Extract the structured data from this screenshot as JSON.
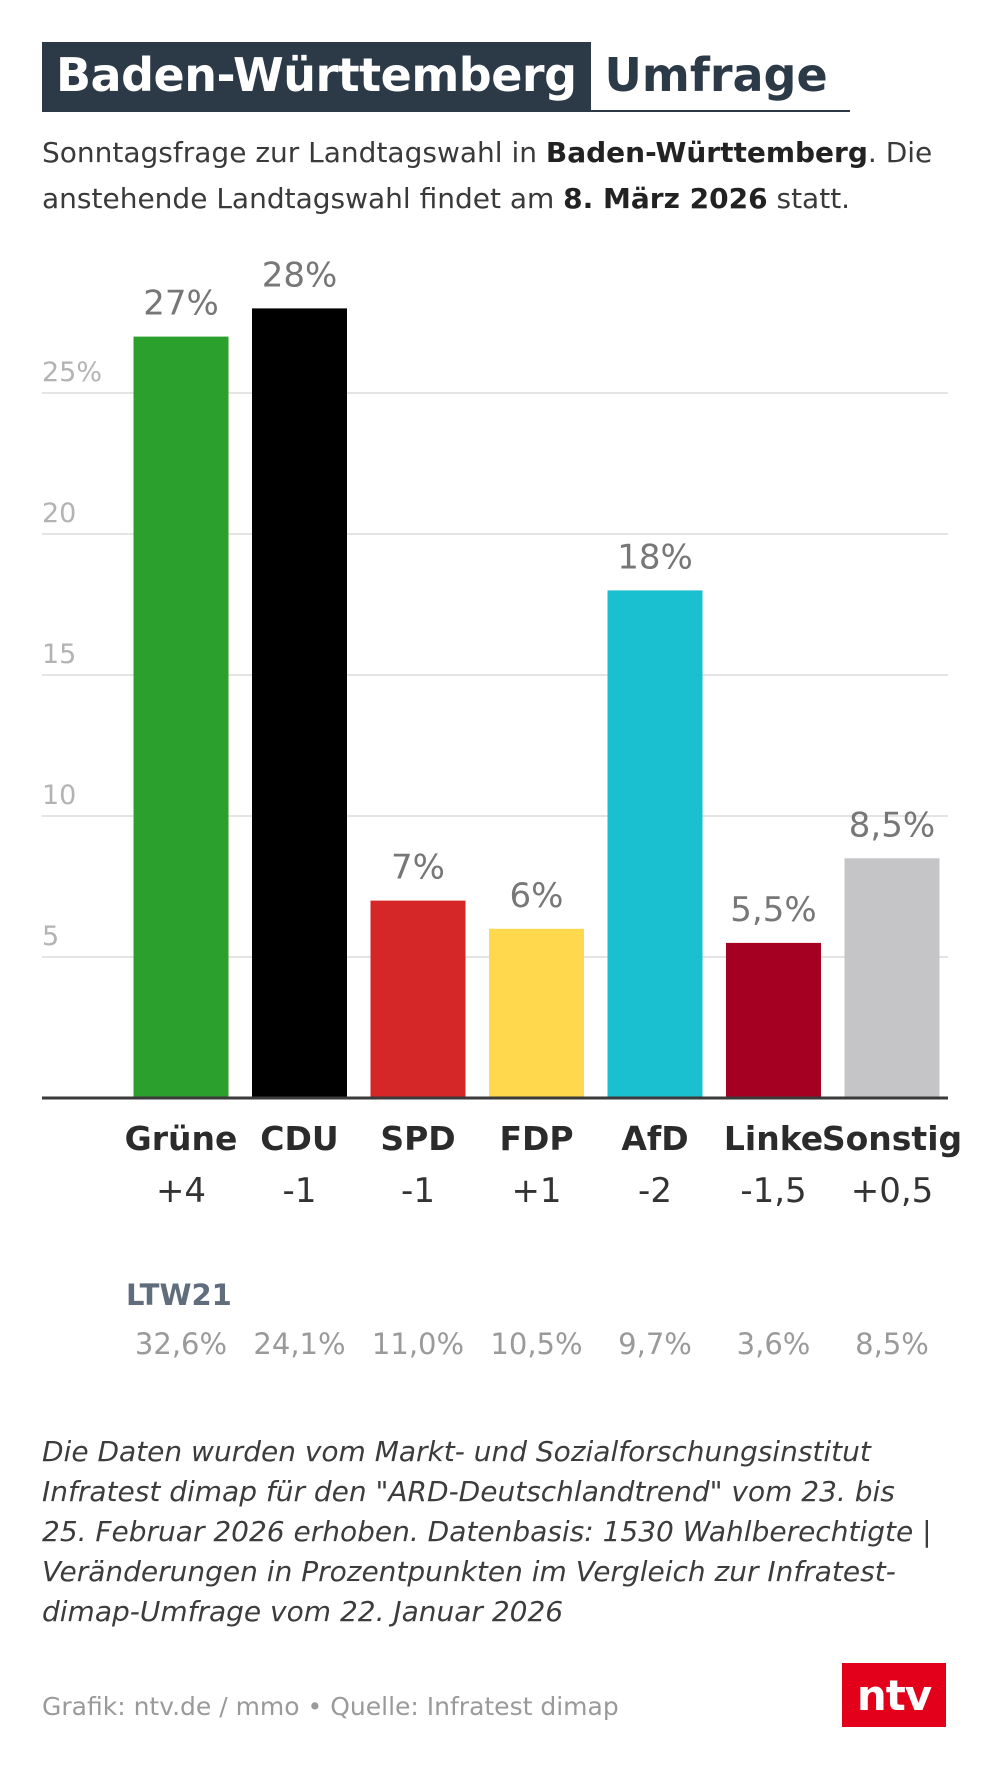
{
  "header": {
    "title_main": "Baden-Württemberg",
    "title_suffix": "Umfrage"
  },
  "subtitle": {
    "part1": "Sonntagsfrage zur Landtagswahl in ",
    "bold1": "Baden-Württemberg",
    "part2": ". Die anstehende Landtagswahl findet am ",
    "bold2": "8. März 2026",
    "part3": " statt."
  },
  "chart_data": {
    "type": "bar",
    "title": "Baden-Württemberg Umfrage",
    "categories": [
      "Grüne",
      "CDU",
      "SPD",
      "FDP",
      "AfD",
      "Linke",
      "Sonstig"
    ],
    "values": [
      27,
      28,
      7,
      6,
      18,
      5.5,
      8.5
    ],
    "value_labels": [
      "27%",
      "28%",
      "7%",
      "6%",
      "18%",
      "5,5%",
      "8,5%"
    ],
    "colors": [
      "#2ca02c",
      "#000000",
      "#d62728",
      "#ffd84d",
      "#1abfd0",
      "#a50021",
      "#c5c5c7"
    ],
    "changes": [
      "+4",
      "-1",
      "-1",
      "+1",
      "-2",
      "-1,5",
      "+0,5"
    ],
    "previous_label": "LTW21",
    "previous_values": [
      "32,6%",
      "24,1%",
      "11,0%",
      "10,5%",
      "9,7%",
      "3,6%",
      "8,5%"
    ],
    "yticks": [
      5,
      10,
      15,
      20,
      25
    ],
    "ytick_labels": [
      "5",
      "10",
      "15",
      "20",
      "25%"
    ],
    "ylim": [
      0,
      28
    ],
    "xlabel": "",
    "ylabel": "",
    "grid": true
  },
  "footnote": "Die Daten wurden vom Markt- und Sozialforschungsinstitut Infratest dimap für den \"ARD-Deutschlandtrend\" vom 23. bis 25. Februar 2026 erhoben. Datenbasis: 1530 Wahlberechtigte | Veränderungen in Prozentpunkten im Vergleich zur Infratest-dimap-Umfrage vom 22. Januar 2026",
  "source": "Grafik: ntv.de / mmo • Quelle: Infratest dimap",
  "logo": "ntv"
}
